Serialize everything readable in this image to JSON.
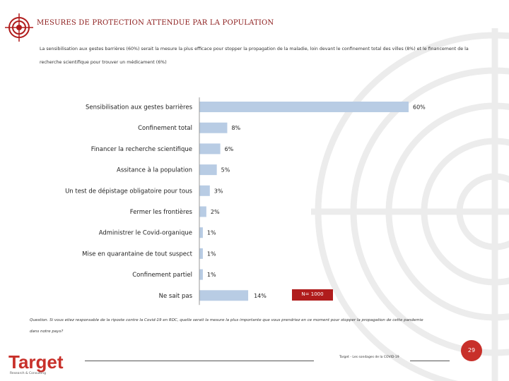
{
  "header": {
    "title": "MESURES DE PROTECTION ATTENDUE PAR LA POPULATION",
    "intro": "La sensibilisation aux gestes barrières (60%) serait la mesure la plus efficace pour stopper la propagation de la maladie, loin devant le confinement total des villes (8%) et le financement de la recherche scientifique pour trouver un médicament (6%)"
  },
  "chart_data": {
    "type": "bar",
    "orientation": "horizontal",
    "categories": [
      "Sensibilisation aux gestes barrières",
      "Confinement total",
      "Financer la recherche scientifique",
      "Assitance à la population",
      "Un test de dépistage obligatoire pour tous",
      "Fermer les frontières",
      "Administrer le Covid-organique",
      "Mise en quarantaine de tout suspect",
      "Confinement partiel",
      "Ne sait pas"
    ],
    "values": [
      60,
      8,
      6,
      5,
      3,
      2,
      1,
      1,
      1,
      14
    ],
    "labels": [
      "60%",
      "8%",
      "6%",
      "5%",
      "3%",
      "2%",
      "1%",
      "1%",
      "1%",
      "14%"
    ],
    "xlim": [
      0,
      60
    ],
    "bar_color": "#b8cce4",
    "axis_color": "#999999"
  },
  "sample": {
    "label": "N= 1000"
  },
  "question": "Question. Si vous etiez responsable de la riposte contre la Covid-19 en RDC, quelle serait la mesure la plus importante que vous prendriez en ce moment pour stopper la propagation de cette pandemie dans notre pays?",
  "footer": {
    "brand": "Target",
    "brand_sub": "Research & Consulting",
    "source": "Target - Les sondages de la COVID-19",
    "page": "29"
  },
  "colors": {
    "accent": "#b01c1c",
    "title": "#8b1a1a",
    "page_badge": "#c8302a"
  }
}
